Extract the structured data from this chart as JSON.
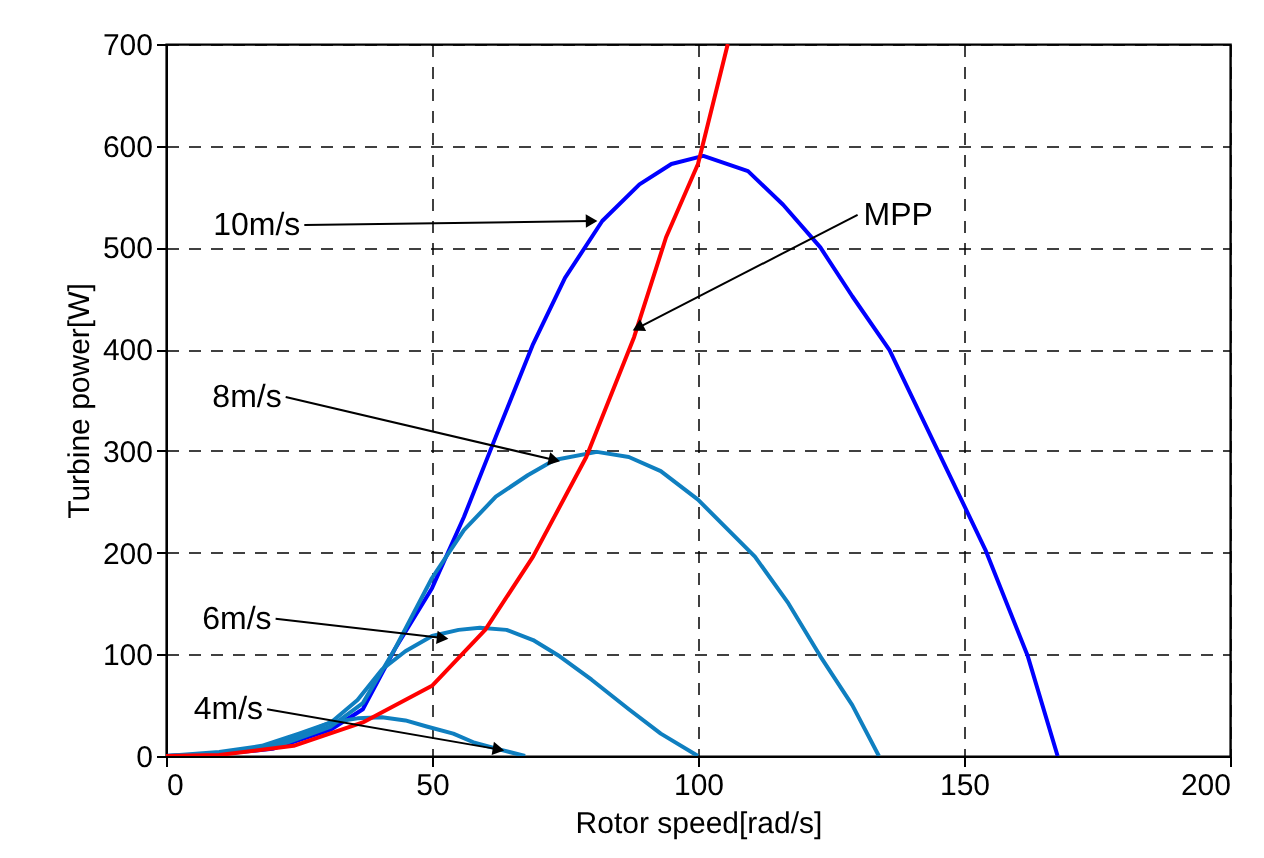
{
  "chart_data": {
    "type": "line",
    "xlabel": "Rotor speed[rad/s]",
    "ylabel": "Turbine power[W]",
    "xlim": [
      0,
      200
    ],
    "xticks": [
      0,
      50,
      100,
      150,
      200
    ],
    "ylim": [
      0,
      700
    ],
    "yticks": [
      0,
      100,
      200,
      300,
      400,
      500,
      600,
      700
    ],
    "grid": true,
    "line_style": "solid",
    "series": [
      {
        "color": "#0000ff",
        "x": [
          0,
          10,
          20,
          31,
          37,
          43,
          50,
          56,
          62,
          69,
          75,
          82,
          89,
          95,
          101,
          109.4,
          116,
          123,
          129,
          136,
          145,
          154,
          162,
          167.6
        ],
        "values": [
          0,
          2,
          7,
          26,
          46,
          105,
          165,
          235,
          314,
          405,
          470,
          526,
          562,
          582,
          590,
          575,
          542,
          500,
          452,
          399,
          301,
          203,
          98,
          0
        ]
      },
      {
        "color": "#0f7fc0",
        "x": [
          0,
          10,
          20,
          31,
          37,
          43,
          50,
          56,
          62,
          68,
          73,
          81,
          87,
          93,
          100,
          110.7,
          117,
          123,
          129,
          134
        ],
        "values": [
          0,
          2,
          8,
          29,
          52,
          105,
          175,
          222,
          255,
          276,
          291,
          299,
          294,
          280,
          252,
          196,
          150,
          98,
          50,
          0
        ]
      },
      {
        "color": "#0f7fc0",
        "x": [
          0,
          10,
          20,
          31,
          36,
          40.6,
          45,
          50,
          55,
          59,
          64,
          69,
          74,
          80,
          87,
          93,
          100
        ],
        "values": [
          0,
          2,
          10,
          33,
          55,
          85,
          103,
          118,
          124,
          126,
          124,
          114,
          98,
          75,
          46,
          22,
          0
        ]
      },
      {
        "color": "#0f7fc0",
        "x": [
          0,
          10,
          18,
          25,
          31,
          36,
          40.6,
          45,
          49,
          54,
          58,
          63,
          67.5
        ],
        "values": [
          0,
          4,
          10,
          22,
          33,
          37,
          38,
          35,
          29,
          22,
          13,
          6,
          0
        ]
      },
      {
        "color": "#ff0000",
        "x": [
          0,
          10,
          24,
          37,
          50,
          60,
          69,
          79,
          88,
          94,
          100,
          105.6
        ],
        "values": [
          0,
          1,
          10,
          33,
          69,
          124,
          196,
          294,
          412,
          510,
          582,
          700
        ]
      }
    ],
    "annotations": [
      {
        "text": "10m/s",
        "x": 80,
        "y": 526
      },
      {
        "text": "8m/s",
        "x": 73,
        "y": 291
      },
      {
        "text": "6m/s",
        "x": 52,
        "y": 116
      },
      {
        "text": "4m/s",
        "x": 62.5,
        "y": 6.5
      },
      {
        "text": "MPP",
        "x": 88.7,
        "y": 421
      }
    ]
  }
}
